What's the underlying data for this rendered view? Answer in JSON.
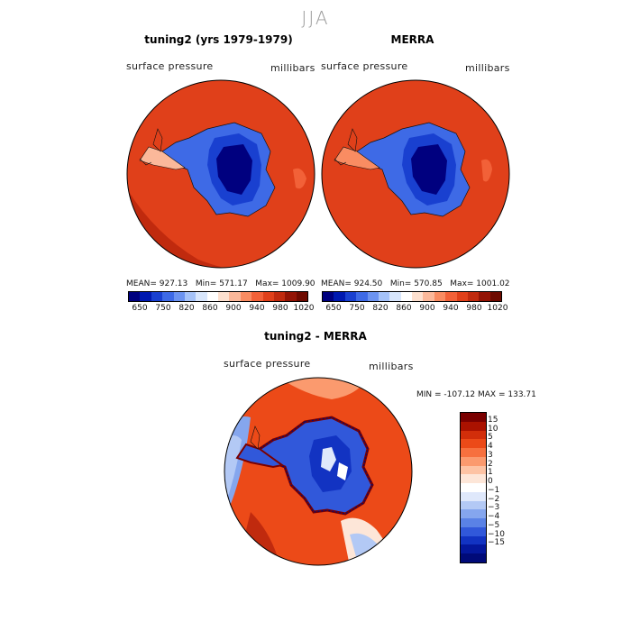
{
  "season": "JJA",
  "panel_left": {
    "title": "tuning2 (yrs 1979-1979)",
    "variable": "surface pressure",
    "units": "millibars",
    "mean": "MEAN= 927.13",
    "min": "Min= 571.17",
    "max": "Max= 1009.90"
  },
  "panel_right": {
    "title": "MERRA",
    "variable": "surface pressure",
    "units": "millibars",
    "mean": "MEAN= 924.50",
    "min": "Min= 570.85",
    "max": "Max= 1001.02"
  },
  "colorbar_abs": {
    "colors": [
      "#00007f",
      "#0019b0",
      "#1940d0",
      "#3e6ae6",
      "#6c93f0",
      "#a5c2f8",
      "#d8e6fc",
      "#ffffff",
      "#fde0cf",
      "#fbb89a",
      "#f98c62",
      "#f26138",
      "#e0401a",
      "#c02a0e",
      "#931405",
      "#6e0a00"
    ],
    "tick_labels": [
      "650",
      "750",
      "820",
      "860",
      "900",
      "940",
      "980",
      "1020"
    ]
  },
  "panel_diff": {
    "title": "tuning2 - MERRA",
    "variable": "surface pressure",
    "units": "millibars",
    "minmax": "MIN = -107.12 MAX = 133.71"
  },
  "colorbar_diff": {
    "colors": [
      "#7a0000",
      "#aa1200",
      "#d22e0a",
      "#ec4a18",
      "#f7703e",
      "#fb9a6e",
      "#fdc3a4",
      "#fde6d8",
      "#ffffff",
      "#dfe8fb",
      "#b3c9f5",
      "#85a6ee",
      "#5a82e6",
      "#3158da",
      "#1233c2",
      "#04179c",
      "#000a78"
    ],
    "tick_labels": [
      "15",
      "10",
      "5",
      "4",
      "3",
      "2",
      "1",
      "0",
      "−1",
      "−2",
      "−3",
      "−4",
      "−5",
      "−10",
      "−15"
    ]
  }
}
